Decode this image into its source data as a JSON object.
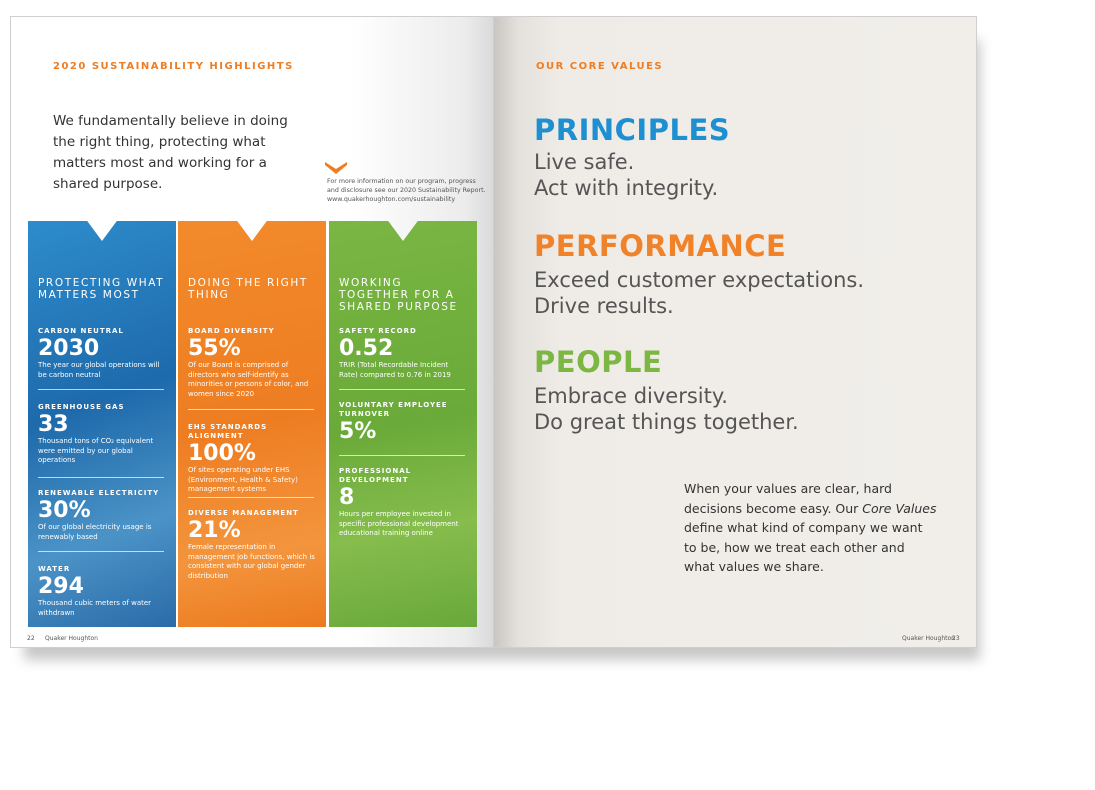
{
  "left_page": {
    "section_label": "2020 SUSTAINABILITY HIGHLIGHTS",
    "intro": "We fundamentally believe in doing the right thing, protecting what matters most and working for a shared purpose.",
    "note": "For more information on our program, progress and disclosure see our 2020 Sustainability Report. www.quakerhoughton.com/sustainability",
    "page_number": "22",
    "brand": "Quaker Houghton",
    "columns": [
      {
        "title": "PROTECTING WHAT MATTERS MOST",
        "color": "#1f77bf",
        "stats": [
          {
            "label": "CARBON NEUTRAL",
            "value": "2030",
            "desc": "The year our global operations will be carbon neutral"
          },
          {
            "label": "GREENHOUSE GAS",
            "value": "33",
            "desc": "Thousand tons of CO₂ equivalent were emitted by our global operations"
          },
          {
            "label": "RENEWABLE ELECTRICITY",
            "value": "30%",
            "desc": "Of our global electricity usage is renewably based"
          },
          {
            "label": "WATER",
            "value": "294",
            "desc": "Thousand cubic meters of water withdrawn"
          }
        ]
      },
      {
        "title": "DOING THE RIGHT THING",
        "color": "#ee7d22",
        "stats": [
          {
            "label": "BOARD DIVERSITY",
            "value": "55%",
            "desc": "Of our Board is comprised of directors who self-identify as minorities or persons of color, and women since 2020"
          },
          {
            "label": "EHS STANDARDS ALIGNMENT",
            "value": "100%",
            "desc": "Of sites operating under EHS (Environment, Health & Safety) management systems"
          },
          {
            "label": "DIVERSE MANAGEMENT",
            "value": "21%",
            "desc": "Female representation in management job functions, which is consistent with our global gender distribution"
          }
        ]
      },
      {
        "title": "WORKING TOGETHER FOR A SHARED PURPOSE",
        "color": "#6aab3a",
        "stats": [
          {
            "label": "SAFETY RECORD",
            "value": "0.52",
            "desc": "TRIR (Total Recordable Incident Rate) compared to 0.76 in 2019"
          },
          {
            "label": "VOLUNTARY EMPLOYEE TURNOVER",
            "value": "5%",
            "desc": ""
          },
          {
            "label": "PROFESSIONAL DEVELOPMENT",
            "value": "8",
            "desc": "Hours per employee invested in specific professional development educational training online"
          }
        ]
      }
    ]
  },
  "right_page": {
    "section_label": "OUR CORE VALUES",
    "page_number": "23",
    "brand": "Quaker Houghton",
    "values": [
      {
        "heading": "PRINCIPLES",
        "color": "#1e8fd0",
        "lines": [
          "Live safe.",
          "Act with integrity."
        ]
      },
      {
        "heading": "PERFORMANCE",
        "color": "#f0822a",
        "lines": [
          "Exceed customer expectations.",
          "Drive results."
        ]
      },
      {
        "heading": "PEOPLE",
        "color": "#7cb743",
        "lines": [
          "Embrace diversity.",
          "Do great things together."
        ]
      }
    ],
    "closing": {
      "before": "When your values are clear, hard decisions become easy. Our ",
      "emphasis": "Core Values",
      "after": " define what kind of company we want to be, how we treat each other and what values we share."
    }
  }
}
